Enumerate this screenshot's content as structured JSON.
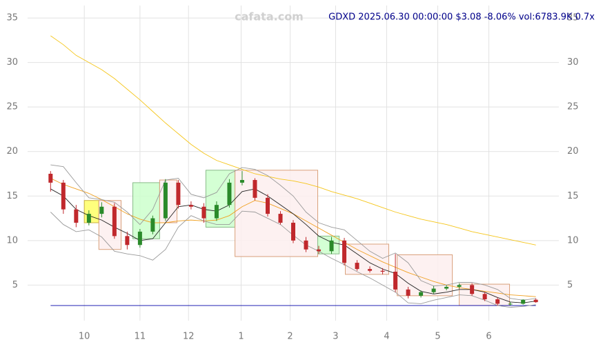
{
  "chart_data": {
    "type": "candlestick",
    "title": "GDXD 2025.06.30 00:00:00 $3.08 -8.06% vol:6783.9K 0.7x",
    "watermark": "cafata.com",
    "x": [
      0,
      5,
      10,
      15,
      20,
      25,
      30,
      35,
      40,
      45,
      50,
      55,
      60,
      65,
      70,
      75,
      80,
      85,
      90,
      95,
      100,
      105,
      110,
      115,
      120,
      125,
      130,
      135,
      140,
      145,
      150,
      155,
      160,
      165,
      170,
      175,
      180,
      185,
      190
    ],
    "open": [
      17.5,
      16.5,
      13.5,
      12.0,
      13.0,
      13.8,
      10.5,
      9.5,
      11.0,
      12.5,
      16.5,
      14.0,
      13.8,
      12.5,
      14.0,
      16.5,
      16.8,
      14.8,
      13.0,
      12.0,
      10.0,
      9.0,
      8.8,
      10.0,
      7.5,
      6.8,
      6.6,
      6.5,
      4.5,
      3.8,
      4.2,
      4.6,
      4.8,
      5.0,
      4.0,
      3.4,
      2.9,
      2.9,
      3.35
    ],
    "high": [
      17.8,
      16.8,
      14.0,
      13.4,
      14.3,
      14.2,
      11.0,
      11.3,
      12.8,
      16.9,
      16.8,
      14.4,
      14.2,
      14.4,
      16.9,
      17.8,
      17.0,
      15.2,
      13.3,
      12.3,
      10.4,
      9.4,
      10.4,
      10.3,
      7.8,
      7.1,
      6.9,
      8.5,
      4.8,
      4.4,
      4.9,
      5.0,
      5.2,
      5.2,
      4.2,
      3.6,
      3.1,
      3.4,
      3.5
    ],
    "low": [
      15.5,
      13.0,
      11.5,
      11.7,
      12.6,
      10.2,
      9.0,
      9.2,
      10.7,
      12.2,
      13.6,
      13.5,
      12.0,
      12.2,
      13.7,
      16.2,
      14.5,
      12.7,
      11.8,
      9.7,
      8.7,
      8.5,
      8.5,
      7.2,
      6.6,
      6.4,
      6.2,
      4.2,
      3.5,
      3.6,
      4.0,
      4.4,
      4.6,
      3.8,
      3.2,
      2.7,
      2.7,
      2.8,
      3.0
    ],
    "close": [
      16.5,
      13.5,
      12.0,
      13.0,
      13.8,
      10.5,
      9.5,
      11.0,
      12.5,
      16.5,
      14.0,
      13.8,
      12.5,
      14.0,
      16.5,
      16.8,
      14.8,
      13.0,
      12.0,
      10.0,
      9.0,
      8.8,
      10.0,
      7.5,
      6.8,
      6.6,
      6.5,
      4.5,
      3.8,
      4.2,
      4.6,
      4.8,
      5.0,
      4.0,
      3.4,
      2.9,
      2.9,
      3.35,
      3.08
    ],
    "up_color": "#2a8a2a",
    "down_color": "#c0282c",
    "series": [
      {
        "color": "#f5c518",
        "values": [
          33.0,
          32.0,
          30.8,
          30.0,
          29.2,
          28.2,
          27.0,
          25.8,
          24.5,
          23.2,
          22.0,
          20.8,
          19.8,
          19.0,
          18.5,
          18.0,
          17.5,
          17.2,
          16.9,
          16.7,
          16.4,
          16.0,
          15.5,
          15.1,
          14.7,
          14.2,
          13.7,
          13.2,
          12.8,
          12.4,
          12.1,
          11.8,
          11.4,
          11.0,
          10.7,
          10.4,
          10.1,
          9.8,
          9.5
        ]
      },
      {
        "color": "#f0a020",
        "values": [
          17.0,
          16.3,
          15.8,
          15.3,
          14.6,
          13.8,
          13.0,
          12.4,
          12.0,
          12.0,
          12.2,
          12.3,
          12.2,
          12.3,
          12.8,
          13.8,
          14.5,
          14.2,
          13.6,
          13.0,
          12.2,
          11.4,
          10.6,
          9.8,
          9.0,
          8.3,
          7.6,
          7.0,
          6.4,
          5.9,
          5.4,
          5.0,
          4.7,
          4.5,
          4.3,
          4.1,
          3.9,
          3.8,
          3.7
        ]
      },
      {
        "color": "#222222",
        "values": [
          15.8,
          15.0,
          13.5,
          12.8,
          12.3,
          11.5,
          10.8,
          10.0,
          10.2,
          12.0,
          13.8,
          14.0,
          13.5,
          13.3,
          14.0,
          15.5,
          15.8,
          15.0,
          14.0,
          13.0,
          11.8,
          10.5,
          9.8,
          9.5,
          8.5,
          7.5,
          6.8,
          6.3,
          5.2,
          4.3,
          4.0,
          4.2,
          4.5,
          4.5,
          4.2,
          3.6,
          3.1,
          3.0,
          3.2
        ]
      },
      {
        "color": "#999999",
        "values": [
          18.5,
          18.3,
          16.5,
          14.8,
          14.6,
          14.3,
          13.2,
          11.8,
          13.5,
          16.8,
          17.0,
          15.2,
          14.8,
          15.4,
          17.5,
          18.2,
          18.0,
          17.3,
          16.2,
          15.0,
          13.2,
          12.0,
          11.5,
          11.2,
          10.0,
          8.8,
          8.0,
          8.6,
          7.5,
          5.5,
          4.9,
          5.0,
          5.3,
          5.3,
          5.0,
          4.5,
          3.5,
          3.3,
          3.5
        ]
      },
      {
        "color": "#999999",
        "values": [
          13.2,
          11.8,
          11.0,
          11.2,
          10.4,
          8.8,
          8.5,
          8.3,
          7.8,
          9.0,
          11.5,
          12.8,
          12.2,
          11.8,
          11.8,
          13.3,
          13.2,
          12.5,
          11.8,
          10.6,
          9.5,
          8.8,
          8.0,
          7.3,
          6.5,
          5.8,
          5.0,
          4.2,
          3.0,
          2.9,
          3.3,
          3.6,
          3.9,
          3.8,
          3.3,
          2.7,
          2.5,
          2.6,
          2.8
        ]
      }
    ],
    "boxes": [
      {
        "x": [
          13.2,
          18.9
        ],
        "y": [
          12,
          14.5
        ],
        "fill": "#ffff66",
        "stroke": "#c8b040"
      },
      {
        "x": [
          18.9,
          27.6
        ],
        "y": [
          9,
          14.5
        ],
        "fill": "#fdeeee",
        "stroke": "#d9a07a"
      },
      {
        "x": [
          32.2,
          42.7
        ],
        "y": [
          10.2,
          16.5
        ],
        "fill": "#ccffcc",
        "stroke": "#88bb88"
      },
      {
        "x": [
          42.7,
          49.5
        ],
        "y": [
          12,
          16.8
        ],
        "fill": "#fdeeee",
        "stroke": "#d9a07a"
      },
      {
        "x": [
          60.8,
          72.2
        ],
        "y": [
          11.5,
          17.9
        ],
        "fill": "#ccffcc",
        "stroke": "#88bb88"
      },
      {
        "x": [
          72.2,
          104.6
        ],
        "y": [
          8.2,
          17.9
        ],
        "fill": "#fdeeee",
        "stroke": "#d9a07a"
      },
      {
        "x": [
          104.6,
          113
        ],
        "y": [
          8.5,
          10.5
        ],
        "fill": "#ccffcc",
        "stroke": "#88bb88"
      },
      {
        "x": [
          115.4,
          132.4
        ],
        "y": [
          6.2,
          9.6
        ],
        "fill": "#fdeeee",
        "stroke": "#d9a07a"
      },
      {
        "x": [
          135.7,
          157.3
        ],
        "y": [
          3.8,
          8.4
        ],
        "fill": "#fdeeee",
        "stroke": "#d9a07a"
      },
      {
        "x": [
          160,
          179.7
        ],
        "y": [
          2.7,
          5.1
        ],
        "fill": "#fdeeee",
        "stroke": "#d9a07a"
      }
    ],
    "support_line": {
      "value": 2.7,
      "color": "#0000aa"
    },
    "xlim": [
      -9,
      199
    ],
    "xticks": [
      {
        "value": 13.2,
        "label": "10"
      },
      {
        "value": 35,
        "label": "11"
      },
      {
        "value": 54,
        "label": "12"
      },
      {
        "value": 74.6,
        "label": "1"
      },
      {
        "value": 93.8,
        "label": "2"
      },
      {
        "value": 111.6,
        "label": "3"
      },
      {
        "value": 131.6,
        "label": "4"
      },
      {
        "value": 151.6,
        "label": "5"
      },
      {
        "value": 171.6,
        "label": "6"
      }
    ],
    "ylim": [
      1,
      36.4
    ],
    "yticks": [
      5,
      10,
      15,
      20,
      25,
      30,
      35
    ],
    "grid": true
  }
}
